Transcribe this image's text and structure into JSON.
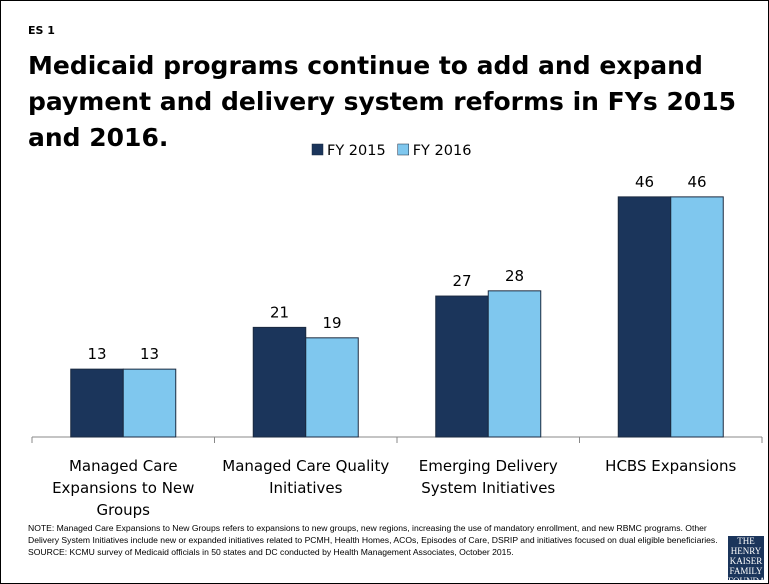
{
  "label": "ES 1",
  "chart_data": {
    "type": "bar",
    "title": "Medicaid programs continue to add and expand payment and delivery system reforms in FYs 2015 and 2016.",
    "categories": [
      "Managed Care Expansions to New Groups",
      "Managed Care Quality Initiatives",
      "Emerging Delivery System Initiatives",
      "HCBS Expansions"
    ],
    "series": [
      {
        "name": "FY 2015",
        "color": "#1b355b",
        "values": [
          13,
          21,
          27,
          46
        ]
      },
      {
        "name": "FY 2016",
        "color": "#7fc7ee",
        "values": [
          13,
          19,
          28,
          46
        ]
      }
    ],
    "legend": "top"
  },
  "notes": [
    "NOTE: Managed Care Expansions to New Groups refers to expansions to new groups, new regions, increasing the use of mandatory enrollment, and new RBMC programs. Other Delivery System Initiatives include new or expanded initiatives related to PCMH, Health Homes, ACOs, Episodes of Care, DSRIP and initiatives focused on dual eligible beneficiaries.",
    "SOURCE: KCMU survey of Medicaid officials in 50 states and DC conducted by Health Management Associates, October 2015."
  ],
  "logo": "THE HENRY KAISER FAMILY FOUNDATION"
}
